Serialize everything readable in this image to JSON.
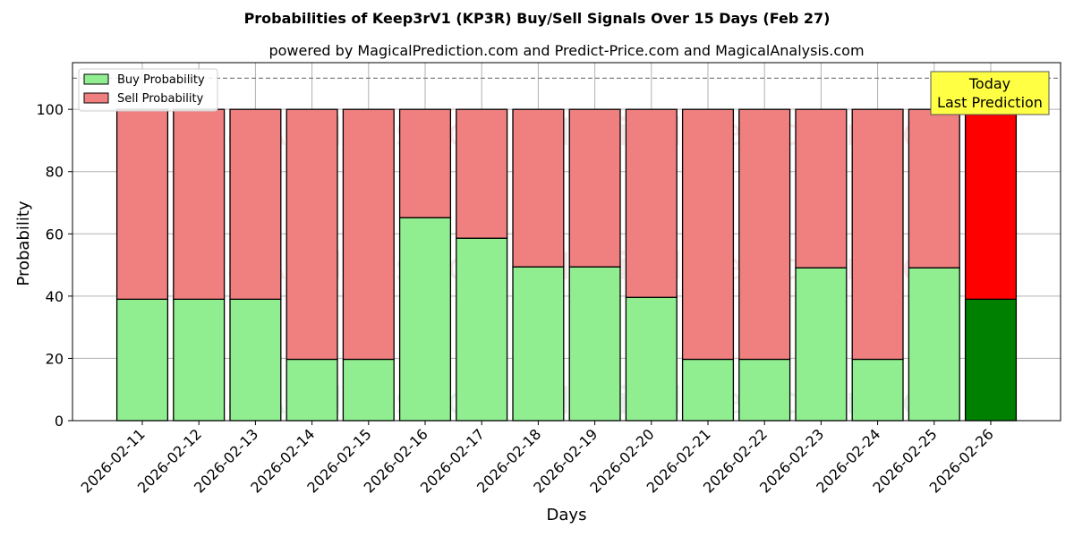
{
  "chart_data": {
    "type": "bar",
    "stacked": true,
    "title": "Probabilities of Keep3rV1 (KP3R) Buy/Sell Signals Over 15 Days (Feb 27)",
    "subtitle": "powered by MagicalPrediction.com and Predict-Price.com and MagicalAnalysis.com",
    "xlabel": "Days",
    "ylabel": "Probability",
    "ylim": [
      0,
      115
    ],
    "yticks": [
      0,
      20,
      40,
      60,
      80,
      100
    ],
    "grid": true,
    "legend_position": "top-left",
    "reference_line": 110,
    "categories": [
      "2026-02-11",
      "2026-02-12",
      "2026-02-13",
      "2026-02-14",
      "2026-02-15",
      "2026-02-16",
      "2026-02-17",
      "2026-02-18",
      "2026-02-19",
      "2026-02-20",
      "2026-02-21",
      "2026-02-22",
      "2026-02-23",
      "2026-02-24",
      "2026-02-25",
      "2026-02-26"
    ],
    "series": [
      {
        "name": "Buy Probability",
        "color": "#90ee90",
        "highlight_color": "#008000",
        "values": [
          39,
          39,
          39,
          19.7,
          19.7,
          65.2,
          58.6,
          49.4,
          49.4,
          39.6,
          19.7,
          19.7,
          49.1,
          19.7,
          49.1,
          39
        ]
      },
      {
        "name": "Sell Probability",
        "color": "#f08080",
        "highlight_color": "#ff0000",
        "values": [
          61,
          61,
          61,
          80.3,
          80.3,
          34.8,
          41.4,
          50.6,
          50.6,
          60.4,
          80.3,
          80.3,
          50.9,
          80.3,
          50.9,
          61
        ]
      }
    ],
    "highlight_index": 15,
    "annotation": {
      "line1": "Today",
      "line2": "Last Prediction",
      "color": "#ffff44"
    },
    "watermarks": [
      "MagicalAnalysis.com",
      "MagicalPrediction.com"
    ]
  }
}
